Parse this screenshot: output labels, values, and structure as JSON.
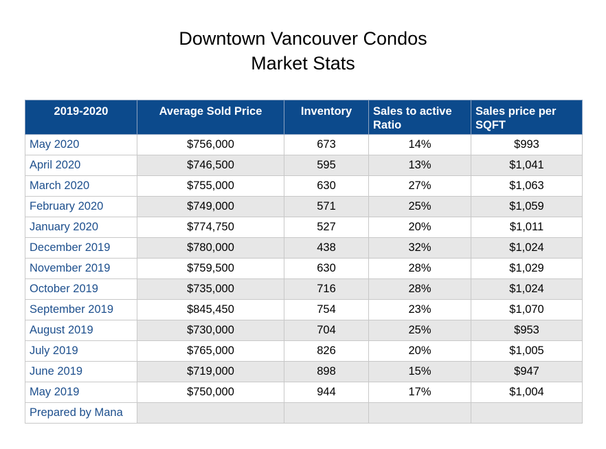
{
  "title": {
    "line1": "Downtown Vancouver Condos",
    "line2": "Market Stats"
  },
  "colors": {
    "header_bg": "#0c4a8c",
    "header_text": "#ffffff",
    "month_text": "#1d4f8d",
    "alt_row_bg": "#e7e7e7"
  },
  "table": {
    "headers": [
      "2019-2020",
      "Average Sold Price",
      "Inventory",
      "Sales to active Ratio",
      "Sales price per SQFT"
    ],
    "rows": [
      [
        "May 2020",
        "$756,000",
        "673",
        "14%",
        "$993"
      ],
      [
        "April 2020",
        "$746,500",
        "595",
        "13%",
        "$1,041"
      ],
      [
        "March 2020",
        "$755,000",
        "630",
        "27%",
        "$1,063"
      ],
      [
        "February 2020",
        "$749,000",
        "571",
        "25%",
        "$1,059"
      ],
      [
        "January 2020",
        "$774,750",
        "527",
        "20%",
        "$1,011"
      ],
      [
        "December 2019",
        "$780,000",
        "438",
        "32%",
        "$1,024"
      ],
      [
        "November 2019",
        "$759,500",
        "630",
        "28%",
        "$1,029"
      ],
      [
        "October 2019",
        "$735,000",
        "716",
        "28%",
        "$1,024"
      ],
      [
        "September 2019",
        "$845,450",
        "754",
        "23%",
        "$1,070"
      ],
      [
        "August 2019",
        "$730,000",
        "704",
        "25%",
        "$953"
      ],
      [
        "July 2019",
        "$765,000",
        "826",
        "20%",
        "$1,005"
      ],
      [
        "June 2019",
        "$719,000",
        "898",
        "15%",
        "$947"
      ],
      [
        "May 2019",
        "$750,000",
        "944",
        "17%",
        "$1,004"
      ]
    ],
    "footer": "Prepared by Mana"
  }
}
